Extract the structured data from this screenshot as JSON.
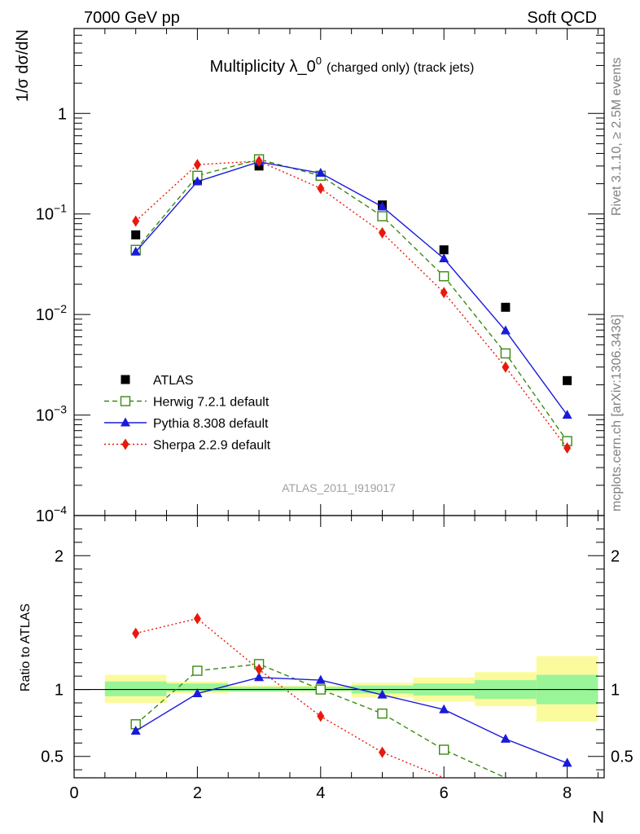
{
  "header": {
    "left": "7000 GeV pp",
    "right": "Soft QCD"
  },
  "side": {
    "rivet": "Rivet 3.1.10, ≥ 2.5M events",
    "mcplots": "mcplots.cern.ch [arXiv:1306.3436]"
  },
  "chart_data": [
    {
      "type": "scatter",
      "title": "Multiplicity λ_0",
      "title_superscript": "0",
      "title_suffix": "(charged only) (track jets)",
      "ylabel": "1/σ dσ/dN",
      "yscale": "log",
      "ylim": [
        0.0001,
        7
      ],
      "xlim": [
        0,
        8.6
      ],
      "analysis_label": "ATLAS_2011_I919017",
      "y_ticks": [
        {
          "value": 1,
          "mantissa": "1",
          "exp": ""
        },
        {
          "value": 0.1,
          "mantissa": "10",
          "exp": "−1"
        },
        {
          "value": 0.01,
          "mantissa": "10",
          "exp": "−2"
        },
        {
          "value": 0.001,
          "mantissa": "10",
          "exp": "−3"
        },
        {
          "value": 0.0001,
          "mantissa": "10",
          "exp": "−4"
        }
      ],
      "legend_position": "lower-left",
      "series": [
        {
          "name": "ATLAS",
          "color": "#000000",
          "marker": "square",
          "line": "none",
          "x": [
            1,
            2,
            3,
            4,
            5,
            6,
            7,
            8
          ],
          "y": [
            0.062,
            0.22,
            0.3,
            0.24,
            0.123,
            0.044,
            0.0118,
            0.0022
          ]
        },
        {
          "name": "Herwig 7.2.1 default",
          "color": "#3a8a12",
          "marker": "open-square",
          "line": "dashed",
          "x": [
            1,
            2,
            3,
            4,
            5,
            6,
            7,
            8
          ],
          "y": [
            0.044,
            0.24,
            0.35,
            0.24,
            0.095,
            0.024,
            0.0041,
            0.00055
          ]
        },
        {
          "name": "Pythia 8.308 default",
          "color": "#1a1adb",
          "marker": "triangle",
          "line": "solid",
          "x": [
            1,
            2,
            3,
            4,
            5,
            6,
            7,
            8
          ],
          "y": [
            0.042,
            0.21,
            0.33,
            0.255,
            0.118,
            0.036,
            0.0069,
            0.001
          ]
        },
        {
          "name": "Sherpa 2.2.9 default",
          "color": "#e8190c",
          "marker": "diamond",
          "line": "dotted",
          "x": [
            1,
            2,
            3,
            4,
            5,
            6,
            7,
            8
          ],
          "y": [
            0.085,
            0.31,
            0.335,
            0.18,
            0.065,
            0.0165,
            0.003,
            0.00047
          ]
        }
      ]
    },
    {
      "type": "scatter",
      "ylabel": "Ratio to ATLAS",
      "xlabel": "N",
      "ylim": [
        0.34,
        2.3
      ],
      "xlim": [
        0,
        8.6
      ],
      "y_ticks": [
        "0.5",
        "1",
        "2"
      ],
      "x_ticks": [
        "0",
        "2",
        "4",
        "6",
        "8"
      ],
      "reference_line": 1,
      "uncertainty_bands": [
        {
          "x": [
            0.5,
            1.5
          ],
          "inner": [
            0.95,
            1.06
          ],
          "outer": [
            0.9,
            1.11
          ]
        },
        {
          "x": [
            1.5,
            2.5
          ],
          "inner": [
            0.985,
            1.045
          ],
          "outer": [
            0.97,
            1.06
          ]
        },
        {
          "x": [
            2.5,
            3.5
          ],
          "inner": [
            0.985,
            1.02
          ],
          "outer": [
            0.98,
            1.03
          ]
        },
        {
          "x": [
            3.5,
            4.5
          ],
          "inner": [
            0.99,
            1.02
          ],
          "outer": [
            0.98,
            1.03
          ]
        },
        {
          "x": [
            4.5,
            5.5
          ],
          "inner": [
            0.97,
            1.03
          ],
          "outer": [
            0.94,
            1.05
          ]
        },
        {
          "x": [
            5.5,
            6.5
          ],
          "inner": [
            0.955,
            1.045
          ],
          "outer": [
            0.91,
            1.09
          ]
        },
        {
          "x": [
            6.5,
            7.5
          ],
          "inner": [
            0.93,
            1.07
          ],
          "outer": [
            0.875,
            1.13
          ]
        },
        {
          "x": [
            7.5,
            8.5
          ],
          "inner": [
            0.89,
            1.11
          ],
          "outer": [
            0.76,
            1.25
          ]
        }
      ],
      "series": [
        {
          "name": "Herwig 7.2.1 default",
          "color": "#3a8a12",
          "marker": "open-square",
          "line": "dashed",
          "x": [
            1,
            2,
            3,
            4,
            5,
            6,
            7
          ],
          "y": [
            0.74,
            1.14,
            1.19,
            1.0,
            0.82,
            0.55,
            0.32
          ]
        },
        {
          "name": "Pythia 8.308 default",
          "color": "#1a1adb",
          "marker": "triangle",
          "line": "solid",
          "x": [
            1,
            2,
            3,
            4,
            5,
            6,
            7,
            8
          ],
          "y": [
            0.69,
            0.97,
            1.09,
            1.07,
            0.96,
            0.85,
            0.63,
            0.45
          ]
        },
        {
          "name": "Sherpa 2.2.9 default",
          "color": "#e8190c",
          "marker": "diamond",
          "line": "dotted",
          "x": [
            1,
            2,
            3,
            4,
            5,
            6
          ],
          "y": [
            1.42,
            1.53,
            1.15,
            0.8,
            0.53,
            0.33
          ]
        }
      ]
    }
  ]
}
